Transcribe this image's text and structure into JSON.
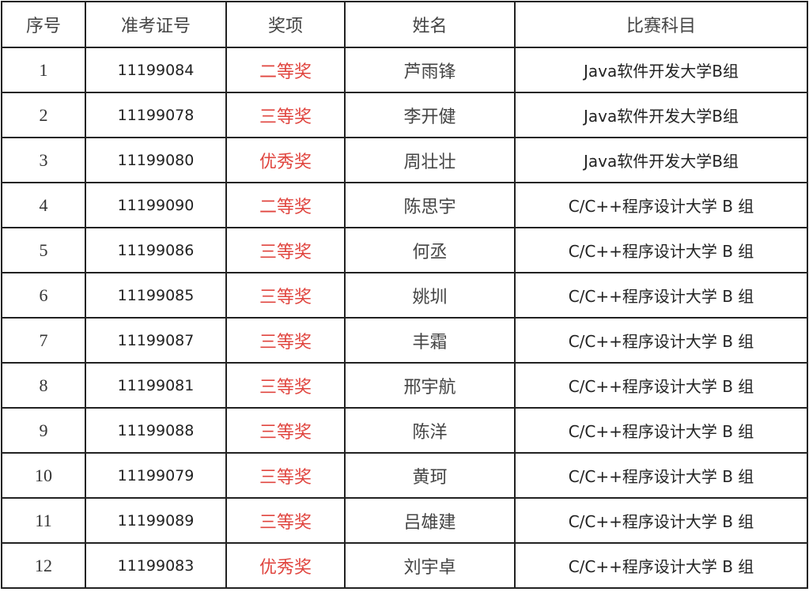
{
  "headers": [
    "序号",
    "准考证号",
    "奖项",
    "姓名",
    "比赛科目"
  ],
  "award_color": "#e0453f",
  "rows": [
    {
      "seq": "1",
      "id": "11199084",
      "award": "二等奖",
      "name": "芦雨锋",
      "subject": "Java软件开发大学B组"
    },
    {
      "seq": "2",
      "id": "11199078",
      "award": "三等奖",
      "name": "李开健",
      "subject": "Java软件开发大学B组"
    },
    {
      "seq": "3",
      "id": "11199080",
      "award": "优秀奖",
      "name": "周壮壮",
      "subject": "Java软件开发大学B组"
    },
    {
      "seq": "4",
      "id": "11199090",
      "award": "二等奖",
      "name": "陈思宇",
      "subject": "C/C++程序设计大学 B 组"
    },
    {
      "seq": "5",
      "id": "11199086",
      "award": "三等奖",
      "name": "何丞",
      "subject": "C/C++程序设计大学 B 组"
    },
    {
      "seq": "6",
      "id": "11199085",
      "award": "三等奖",
      "name": "姚圳",
      "subject": "C/C++程序设计大学 B 组"
    },
    {
      "seq": "7",
      "id": "11199087",
      "award": "三等奖",
      "name": "丰霜",
      "subject": "C/C++程序设计大学 B 组"
    },
    {
      "seq": "8",
      "id": "11199081",
      "award": "三等奖",
      "name": "邢宇航",
      "subject": "C/C++程序设计大学 B 组"
    },
    {
      "seq": "9",
      "id": "11199088",
      "award": "三等奖",
      "name": "陈洋",
      "subject": "C/C++程序设计大学 B 组"
    },
    {
      "seq": "10",
      "id": "11199079",
      "award": "三等奖",
      "name": "黄珂",
      "subject": "C/C++程序设计大学 B 组"
    },
    {
      "seq": "11",
      "id": "11199089",
      "award": "三等奖",
      "name": "吕雄建",
      "subject": "C/C++程序设计大学 B 组"
    },
    {
      "seq": "12",
      "id": "11199083",
      "award": "优秀奖",
      "name": "刘宇卓",
      "subject": "C/C++程序设计大学 B 组"
    }
  ]
}
